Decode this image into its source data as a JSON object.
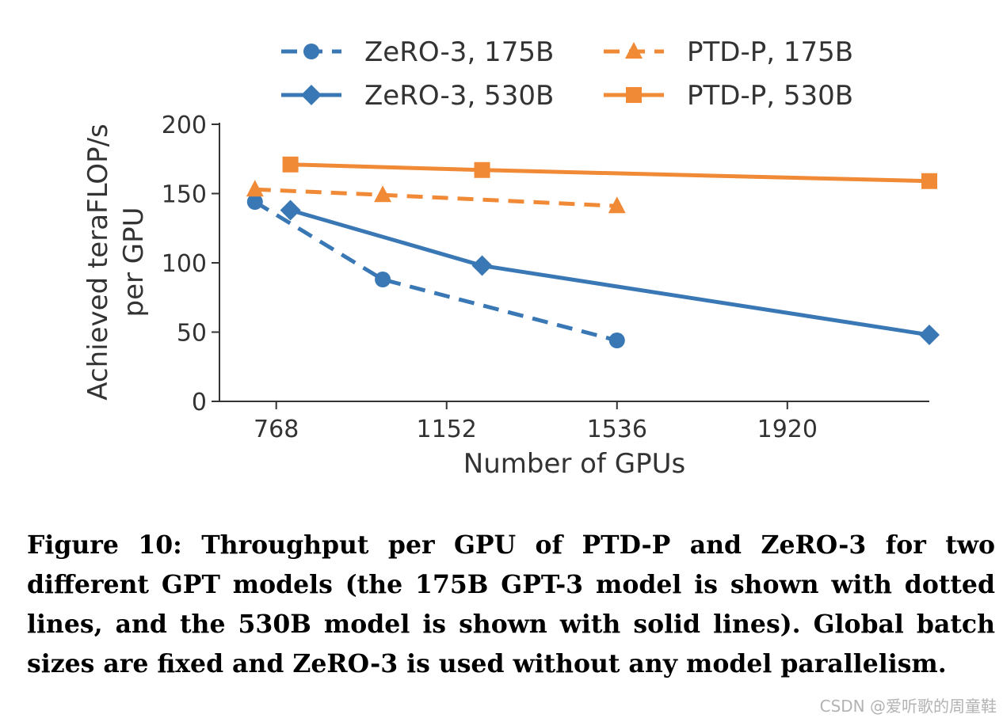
{
  "chart_data": {
    "type": "line",
    "xlabel": "Number of GPUs",
    "ylabel_lines": [
      "Achieved teraFLOP/s",
      "per GPU"
    ],
    "xlim": [
      640,
      2240
    ],
    "ylim": [
      0,
      200
    ],
    "xticks": [
      768,
      1152,
      1536,
      1920
    ],
    "yticks": [
      0,
      50,
      100,
      150,
      200
    ],
    "grid": false,
    "legend_position": "top",
    "series": [
      {
        "name": "ZeRO-3, 175B",
        "color": "#3a78b5",
        "line": "dashed",
        "marker": "circle",
        "x": [
          720,
          1008,
          1536
        ],
        "y": [
          144,
          88,
          44
        ]
      },
      {
        "name": "ZeRO-3, 530B",
        "color": "#3a78b5",
        "line": "solid",
        "marker": "diamond",
        "x": [
          800,
          1232,
          2240
        ],
        "y": [
          138,
          98,
          48
        ]
      },
      {
        "name": "PTD-P, 175B",
        "color": "#f08a36",
        "line": "dashed",
        "marker": "triangle",
        "x": [
          720,
          1008,
          1536
        ],
        "y": [
          153,
          149,
          141
        ]
      },
      {
        "name": "PTD-P, 530B",
        "color": "#f08a36",
        "line": "solid",
        "marker": "square",
        "x": [
          800,
          1232,
          2240
        ],
        "y": [
          171,
          167,
          159
        ]
      }
    ]
  },
  "caption": "Figure 10: Throughput per GPU of PTD-P and ZeRO-3 for two different GPT models (the 175B GPT-3 model is shown with dotted lines, and the 530B model is shown with solid lines). Global batch sizes are fixed and ZeRO-3 is used without any model parallelism.",
  "watermark": "CSDN @爱听歌的周童鞋"
}
